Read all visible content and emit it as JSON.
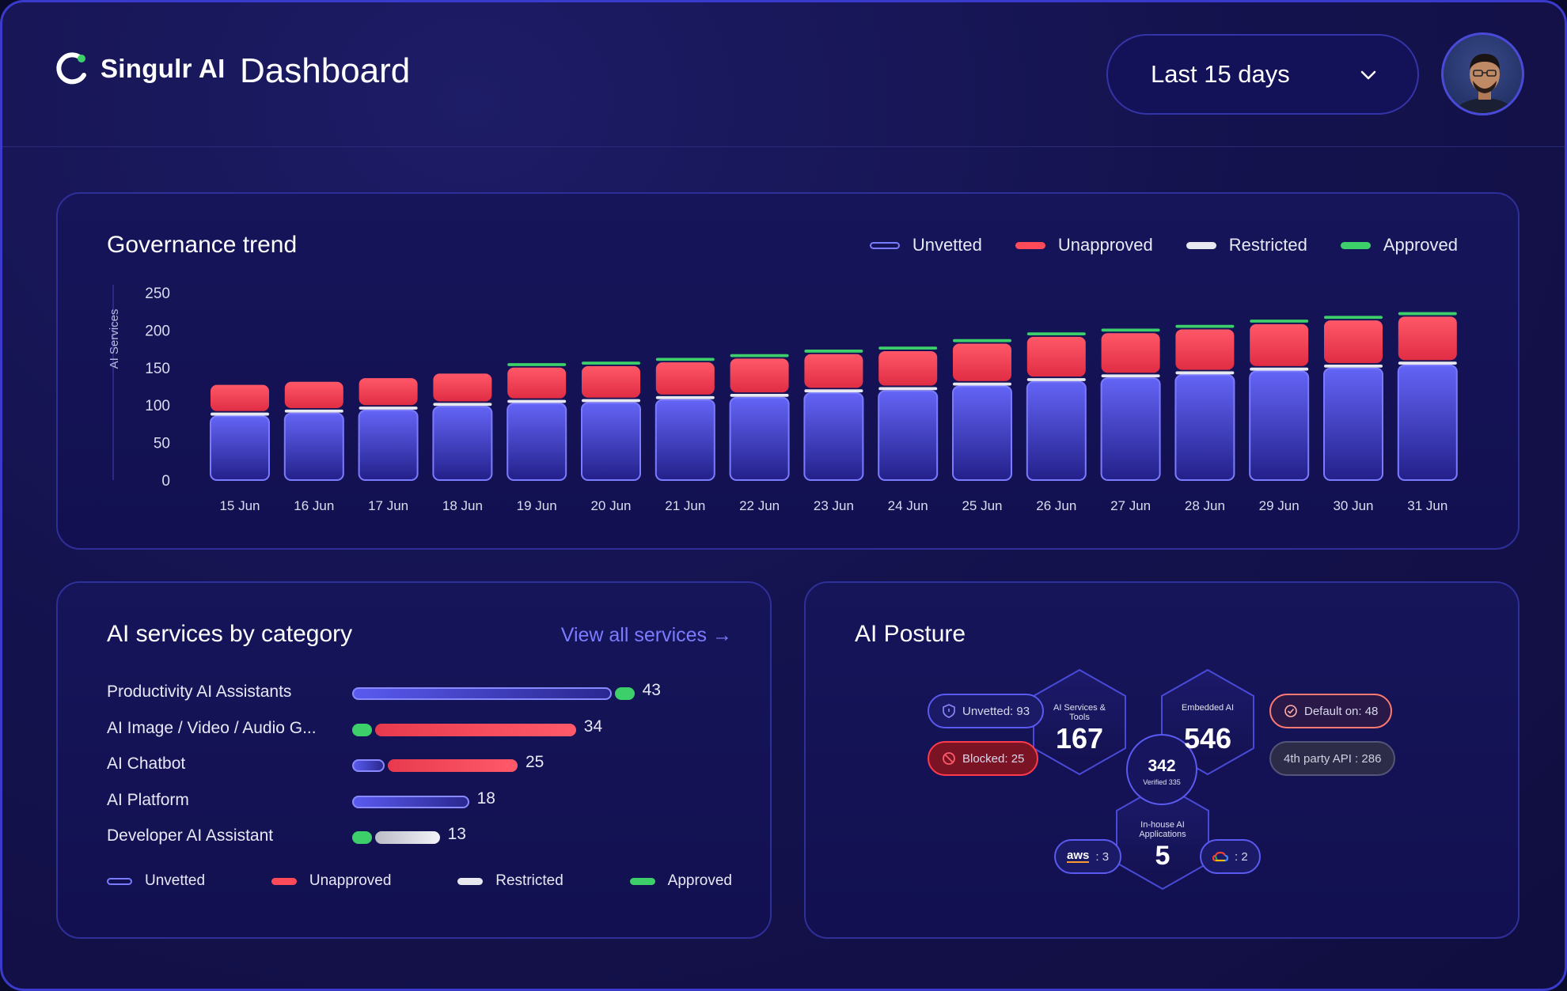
{
  "header": {
    "brand": "Singulr AI",
    "title": "Dashboard",
    "date_range": "Last 15 days"
  },
  "legend": {
    "unvetted": "Unvetted",
    "unapproved": "Unapproved",
    "restricted": "Restricted",
    "approved": "Approved"
  },
  "colors": {
    "unvetted": "#6a6af0",
    "unapproved": "#ff4a5a",
    "restricted": "#e8e8f0",
    "approved": "#3ccf6a"
  },
  "trend": {
    "title": "Governance trend",
    "chart_data": {
      "type": "bar",
      "stacked": true,
      "ylabel": "AI Services",
      "ylim": [
        0,
        250
      ],
      "yticks": [
        0,
        50,
        100,
        150,
        200,
        250
      ],
      "categories": [
        "15 Jun",
        "16 Jun",
        "17 Jun",
        "18 Jun",
        "19 Jun",
        "20 Jun",
        "21 Jun",
        "22 Jun",
        "23 Jun",
        "24 Jun",
        "25 Jun",
        "26 Jun",
        "27 Jun",
        "28 Jun",
        "29 Jun",
        "30 Jun",
        "31 Jun"
      ],
      "series": [
        {
          "name": "Unvetted",
          "values": [
            85,
            89,
            93,
            98,
            102,
            103,
            107,
            110,
            116,
            119,
            125,
            131,
            136,
            140,
            145,
            149,
            153
          ]
        },
        {
          "name": "Restricted",
          "values": [
            4,
            4,
            4,
            4,
            4,
            4,
            4,
            4,
            4,
            4,
            4,
            4,
            4,
            4,
            4,
            4,
            4
          ]
        },
        {
          "name": "Unapproved",
          "values": [
            35,
            35,
            36,
            37,
            41,
            42,
            43,
            45,
            45,
            46,
            50,
            53,
            53,
            54,
            56,
            57,
            58
          ]
        },
        {
          "name": "Approved",
          "values": [
            0,
            0,
            0,
            0,
            4,
            4,
            4,
            4,
            4,
            4,
            4,
            4,
            4,
            4,
            4,
            4,
            4
          ]
        }
      ]
    }
  },
  "categories": {
    "title": "AI services by category",
    "link": "View all services →",
    "items": [
      {
        "label": "Productivity AI Assistants",
        "count": "43",
        "segments": [
          {
            "status": "unvetted",
            "value": 40
          },
          {
            "status": "approved",
            "value": 3
          }
        ]
      },
      {
        "label": "AI Image / Video / Audio G...",
        "count": "34",
        "segments": [
          {
            "status": "approved",
            "value": 3
          },
          {
            "status": "unapproved",
            "value": 31
          }
        ]
      },
      {
        "label": "AI Chatbot",
        "count": "25",
        "segments": [
          {
            "status": "unvetted",
            "value": 5
          },
          {
            "status": "unapproved",
            "value": 20
          }
        ]
      },
      {
        "label": "AI Platform",
        "count": "18",
        "segments": [
          {
            "status": "unvetted",
            "value": 18
          }
        ]
      },
      {
        "label": "Developer AI Assistant",
        "count": "13",
        "segments": [
          {
            "status": "approved",
            "value": 3
          },
          {
            "status": "restricted",
            "value": 10
          }
        ]
      }
    ]
  },
  "posture": {
    "title": "AI Posture",
    "unvetted_pill": "Unvetted: 93",
    "blocked_pill": "Blocked: 25",
    "default_pill": "Default on: 48",
    "third_party_pill": "4th party API : 286",
    "services_label": "AI Services & Tools",
    "services_value": "167",
    "embedded_label": "Embedded AI",
    "embedded_value": "546",
    "center_value": "342",
    "center_label": "Verified 335",
    "inhouse_label": "In-house AI Applications",
    "inhouse_value": "5",
    "aws_logo": "aws",
    "aws_value": ": 3",
    "gcp_value": ": 2"
  }
}
